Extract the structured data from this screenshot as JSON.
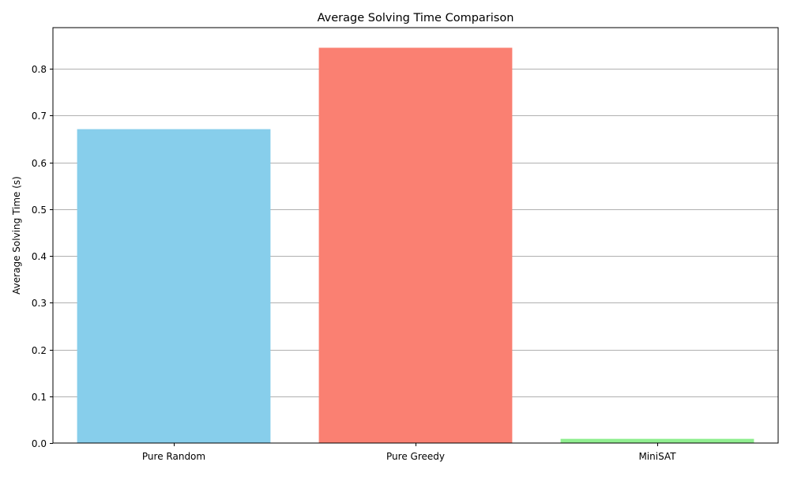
{
  "chart_data": {
    "type": "bar",
    "title": "Average Solving Time Comparison",
    "xlabel": "",
    "ylabel": "Average Solving Time (s)",
    "categories": [
      "Pure Random",
      "Pure Greedy",
      "MiniSAT"
    ],
    "values": [
      0.671,
      0.845,
      0.009
    ],
    "colors": [
      "#87ceeb",
      "#fa8072",
      "#90ee90"
    ],
    "ylim": [
      0,
      0.888
    ],
    "yticks": [
      0.0,
      0.1,
      0.2,
      0.3,
      0.4,
      0.5,
      0.6,
      0.7,
      0.8
    ],
    "ytick_labels": [
      "0.0",
      "0.1",
      "0.2",
      "0.3",
      "0.4",
      "0.5",
      "0.6",
      "0.7",
      "0.8"
    ],
    "grid": "y",
    "grid_color": "#b0b0b0"
  }
}
